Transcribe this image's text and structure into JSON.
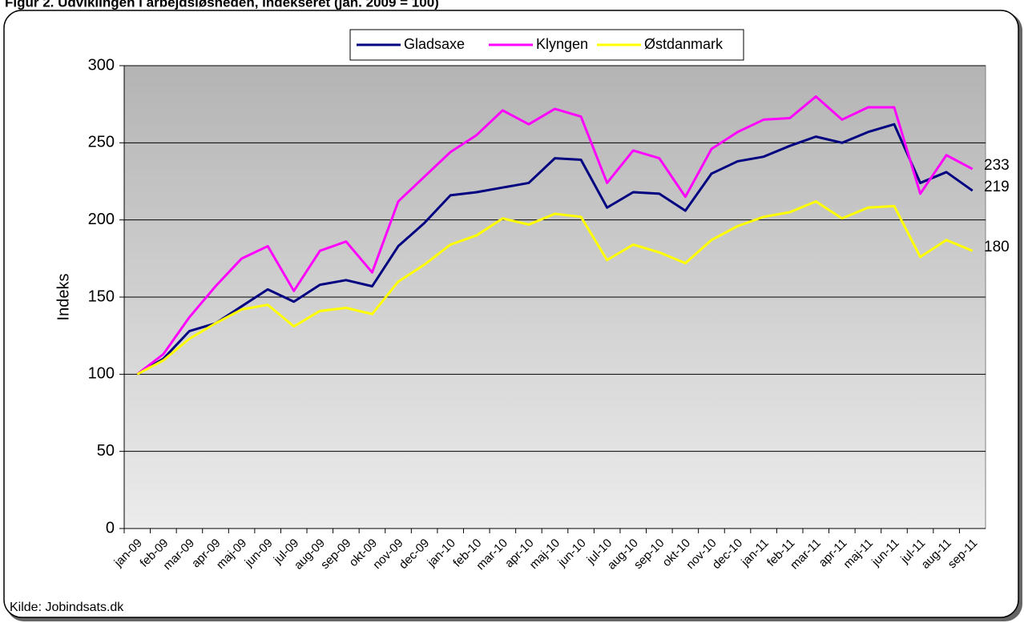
{
  "chart_data": {
    "type": "line",
    "title": "Figur 2. Udviklingen i arbejdsløsheden, indekseret (jan. 2009 = 100)",
    "y_label": "Indeks",
    "source": "Kilde: Jobindsats.dk",
    "categories": [
      "jan-09",
      "feb-09",
      "mar-09",
      "apr-09",
      "maj-09",
      "jun-09",
      "jul-09",
      "aug-09",
      "sep-09",
      "okt-09",
      "nov-09",
      "dec-09",
      "jan-10",
      "feb-10",
      "mar-10",
      "apr-10",
      "maj-10",
      "jun-10",
      "jul-10",
      "aug-10",
      "sep-10",
      "okt-10",
      "nov-10",
      "dec-10",
      "jan-11",
      "feb-11",
      "mar-11",
      "apr-11",
      "maj-11",
      "jun-11",
      "jul-11",
      "aug-11",
      "sep-11"
    ],
    "series": [
      {
        "name": "Gladsaxe",
        "color": "#000080",
        "values": [
          100,
          110,
          128,
          133,
          144,
          155,
          147,
          158,
          161,
          157,
          183,
          198,
          216,
          218,
          221,
          224,
          240,
          239,
          208,
          218,
          217,
          206,
          230,
          238,
          241,
          248,
          254,
          250,
          257,
          262,
          224,
          231,
          219
        ]
      },
      {
        "name": "Klyngen",
        "color": "#ff00ff",
        "values": [
          100,
          113,
          137,
          157,
          175,
          183,
          154,
          180,
          186,
          166,
          212,
          228,
          244,
          255,
          271,
          262,
          272,
          267,
          224,
          245,
          240,
          215,
          246,
          257,
          265,
          266,
          280,
          265,
          273,
          273,
          217,
          242,
          233
        ]
      },
      {
        "name": "Østdanmark",
        "color": "#ffff00",
        "values": [
          100,
          109,
          123,
          133,
          142,
          145,
          131,
          141,
          143,
          139,
          160,
          171,
          184,
          190,
          201,
          197,
          204,
          202,
          174,
          184,
          179,
          172,
          187,
          196,
          202,
          205,
          212,
          201,
          208,
          209,
          176,
          187,
          180
        ]
      }
    ],
    "ylim": [
      0,
      300
    ],
    "yticks": [
      0,
      50,
      100,
      150,
      200,
      250,
      300
    ],
    "grid": true,
    "legend": "top"
  }
}
